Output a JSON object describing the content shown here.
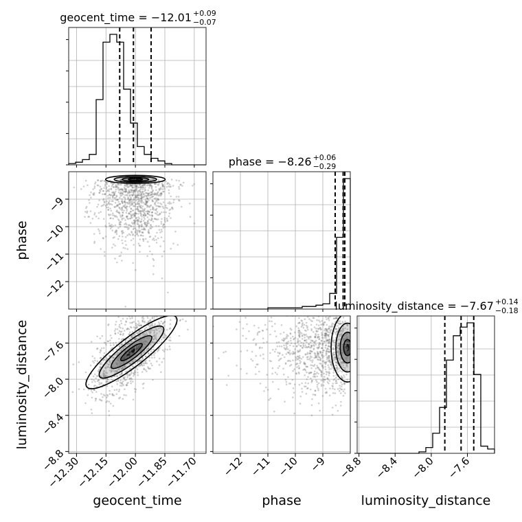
{
  "chart_data": {
    "type": "corner",
    "parameters": [
      "geocent_time",
      "phase",
      "luminosity_distance"
    ],
    "axis_labels": [
      "geocent_time",
      "phase",
      "luminosity_distance"
    ],
    "titles": [
      {
        "param": "geocent_time",
        "text": "geocent_time = −12.01",
        "upper": "+0.09",
        "lower": "−0.07"
      },
      {
        "param": "phase",
        "text": "phase = −8.26",
        "upper": "+0.06",
        "lower": "−0.29"
      },
      {
        "param": "luminosity_distance",
        "text": "luminosity_distance = −7.67",
        "upper": "+0.14",
        "lower": "−0.18"
      }
    ],
    "ranges": {
      "geocent_time": [
        -12.34,
        -11.64
      ],
      "phase": [
        -13.0,
        -8.0
      ],
      "luminosity_distance": [
        -8.82,
        -7.3
      ]
    },
    "ticks": {
      "geocent_time": {
        "values": [
          -12.3,
          -12.15,
          -12.0,
          -11.85,
          -11.7
        ],
        "labels": [
          "−12.30",
          "−12.15",
          "−12.00",
          "−11.85",
          "−11.70"
        ]
      },
      "phase": {
        "values": [
          -12,
          -11,
          -10,
          -9
        ],
        "labels": [
          "−12",
          "−11",
          "−10",
          "−9"
        ]
      },
      "luminosity_distance": {
        "values": [
          -8.8,
          -8.4,
          -8.0,
          -7.6
        ],
        "labels": [
          "−8.8",
          "−8.4",
          "−8.0",
          "−7.6"
        ]
      }
    },
    "histograms": {
      "geocent_time": {
        "edges": [
          -12.34,
          -12.305,
          -12.27,
          -12.235,
          -12.2,
          -12.165,
          -12.13,
          -12.095,
          -12.06,
          -12.025,
          -11.99,
          -11.955,
          -11.92,
          -11.885,
          -11.85,
          -11.815,
          -11.78,
          -11.745,
          -11.71,
          -11.675,
          -11.64
        ],
        "counts": [
          1,
          2,
          4,
          8,
          50,
          94,
          100,
          94,
          58,
          32,
          14,
          8,
          5,
          3,
          1,
          0,
          0,
          0,
          0,
          0
        ]
      },
      "phase": {
        "edges": [
          -13.0,
          -12.75,
          -12.5,
          -12.25,
          -12.0,
          -11.75,
          -11.5,
          -11.25,
          -11.0,
          -10.75,
          -10.5,
          -10.25,
          -10.0,
          -9.75,
          -9.5,
          -9.25,
          -9.0,
          -8.75,
          -8.5,
          -8.25,
          -8.0
        ],
        "counts": [
          0,
          0,
          0,
          0,
          0,
          0,
          0,
          0,
          1,
          1,
          1,
          1,
          1,
          2,
          2,
          3,
          4,
          12,
          55,
          100
        ]
      },
      "luminosity_distance": {
        "edges": [
          -8.82,
          -8.744,
          -8.668,
          -8.592,
          -8.516,
          -8.44,
          -8.364,
          -8.288,
          -8.212,
          -8.136,
          -8.06,
          -7.984,
          -7.908,
          -7.832,
          -7.756,
          -7.68,
          -7.604,
          -7.528,
          -7.452,
          -7.376,
          -7.3
        ],
        "counts": [
          0,
          0,
          0,
          0,
          0,
          0,
          0,
          0,
          0,
          1,
          4,
          14,
          32,
          65,
          82,
          88,
          91,
          55,
          5,
          3
        ]
      }
    },
    "quantiles": {
      "geocent_time": [
        -12.08,
        -12.01,
        -11.92
      ],
      "phase": [
        -8.55,
        -8.26,
        -8.2
      ],
      "luminosity_distance": [
        -7.85,
        -7.67,
        -7.53
      ]
    },
    "pairs": [
      {
        "x": "geocent_time",
        "y": "phase",
        "center": [
          -12.0,
          -8.28
        ],
        "spread": [
          0.08,
          0.6
        ]
      },
      {
        "x": "geocent_time",
        "y": "luminosity_distance",
        "center": [
          -12.02,
          -7.7
        ],
        "spread": [
          0.08,
          0.15
        ]
      },
      {
        "x": "phase",
        "y": "luminosity_distance",
        "center": [
          -8.1,
          -7.65
        ],
        "spread": [
          0.9,
          0.2
        ]
      }
    ],
    "grid": true
  }
}
